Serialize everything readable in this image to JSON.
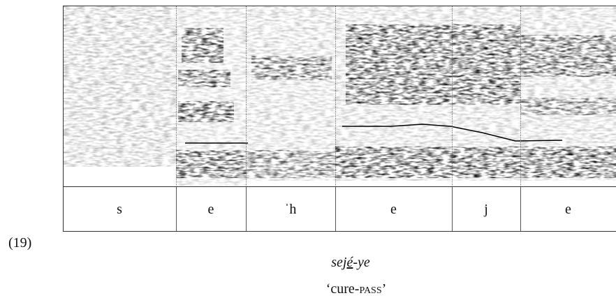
{
  "example_number": "(19)",
  "segments": [
    "s",
    "e",
    "ˈh",
    "e",
    "j",
    "e"
  ],
  "caption": {
    "parts": [
      "sej",
      "é",
      "-ye"
    ]
  },
  "gloss": {
    "parts": [
      "‘cure-",
      "pass",
      "’"
    ]
  }
}
